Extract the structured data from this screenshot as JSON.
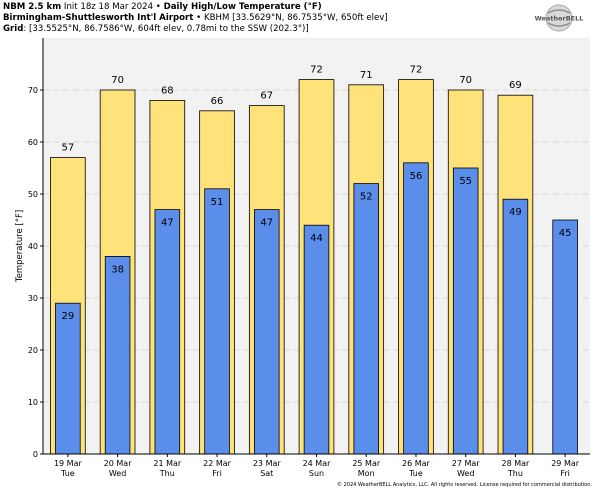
{
  "header": {
    "model": "NBM 2.5 km",
    "init": "Init 18z 18 Mar 2024",
    "bullet": "•",
    "product": "Daily High/Low Temperature (°F)",
    "station_name": "Birmingham-Shuttlesworth Int'l Airport",
    "station_info": "KBHM [33.5629°N, 86.7535°W, 650ft elev]",
    "grid_label": "Grid",
    "grid_info": ": [33.5525°N, 86.7586°W, 604ft elev, 0.78mi to the SSW (202.3°)]"
  },
  "logo_text": "WeatherBELL",
  "copyright": "© 2024 WeatherBELL Analytics, LLC. All rights reserved. License required for commercial distribution.",
  "colors": {
    "high": "#FFE27A",
    "low": "#5B8DEB",
    "plot_bg": "#F2F2F2",
    "grid": "#D8D8D8"
  },
  "chart_data": {
    "type": "bar",
    "ylabel": "Temperature [°F]",
    "ylim": [
      0,
      80
    ],
    "yticks": [
      0,
      10,
      20,
      30,
      40,
      50,
      60,
      70
    ],
    "grid": "horizontal dashed",
    "categories": [
      {
        "date": "19 Mar",
        "day": "Tue"
      },
      {
        "date": "20 Mar",
        "day": "Wed"
      },
      {
        "date": "21 Mar",
        "day": "Thu"
      },
      {
        "date": "22 Mar",
        "day": "Fri"
      },
      {
        "date": "23 Mar",
        "day": "Sat"
      },
      {
        "date": "24 Mar",
        "day": "Sun"
      },
      {
        "date": "25 Mar",
        "day": "Mon"
      },
      {
        "date": "26 Mar",
        "day": "Tue"
      },
      {
        "date": "27 Mar",
        "day": "Wed"
      },
      {
        "date": "28 Mar",
        "day": "Thu"
      },
      {
        "date": "29 Mar",
        "day": "Fri"
      }
    ],
    "series": [
      {
        "role": "high",
        "values": [
          57,
          70,
          68,
          66,
          67,
          72,
          71,
          72,
          70,
          69,
          null
        ],
        "labels": [
          "57",
          "70",
          "68",
          "66",
          "67",
          "72",
          "71",
          "72",
          "70",
          "69",
          ""
        ]
      },
      {
        "role": "low",
        "values": [
          29,
          38,
          47,
          51,
          47,
          44,
          52,
          56,
          55,
          49,
          45
        ],
        "labels": [
          "29",
          "38",
          "47",
          "51",
          "47",
          "44",
          "52",
          "56",
          "55",
          "49",
          "45"
        ]
      }
    ]
  }
}
